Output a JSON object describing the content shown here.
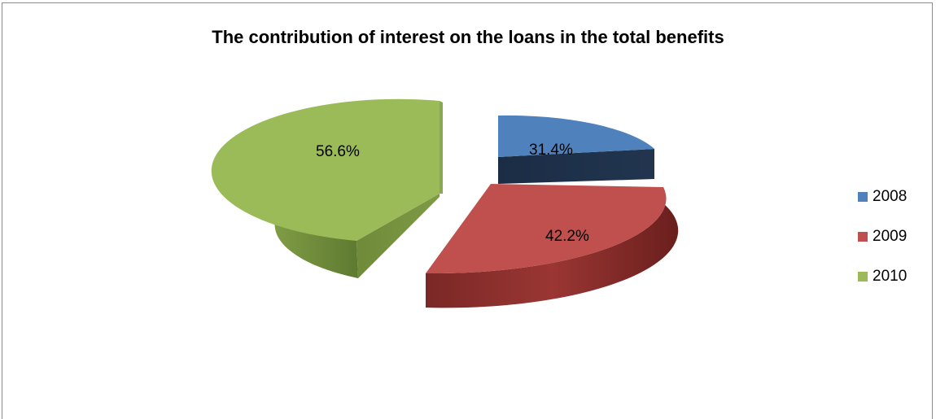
{
  "chart_data": {
    "type": "pie",
    "title": "The contribution of interest on the loans in the total benefits",
    "categories": [
      "2008",
      "2009",
      "2010"
    ],
    "values": [
      31.4,
      42.2,
      56.6
    ],
    "value_labels": [
      "31.4%",
      "42.2%",
      "56.6%"
    ],
    "colors": [
      "#4f81bd",
      "#c0504d",
      "#9bbb59"
    ],
    "style": "3d-exploded",
    "legend_position": "right"
  }
}
